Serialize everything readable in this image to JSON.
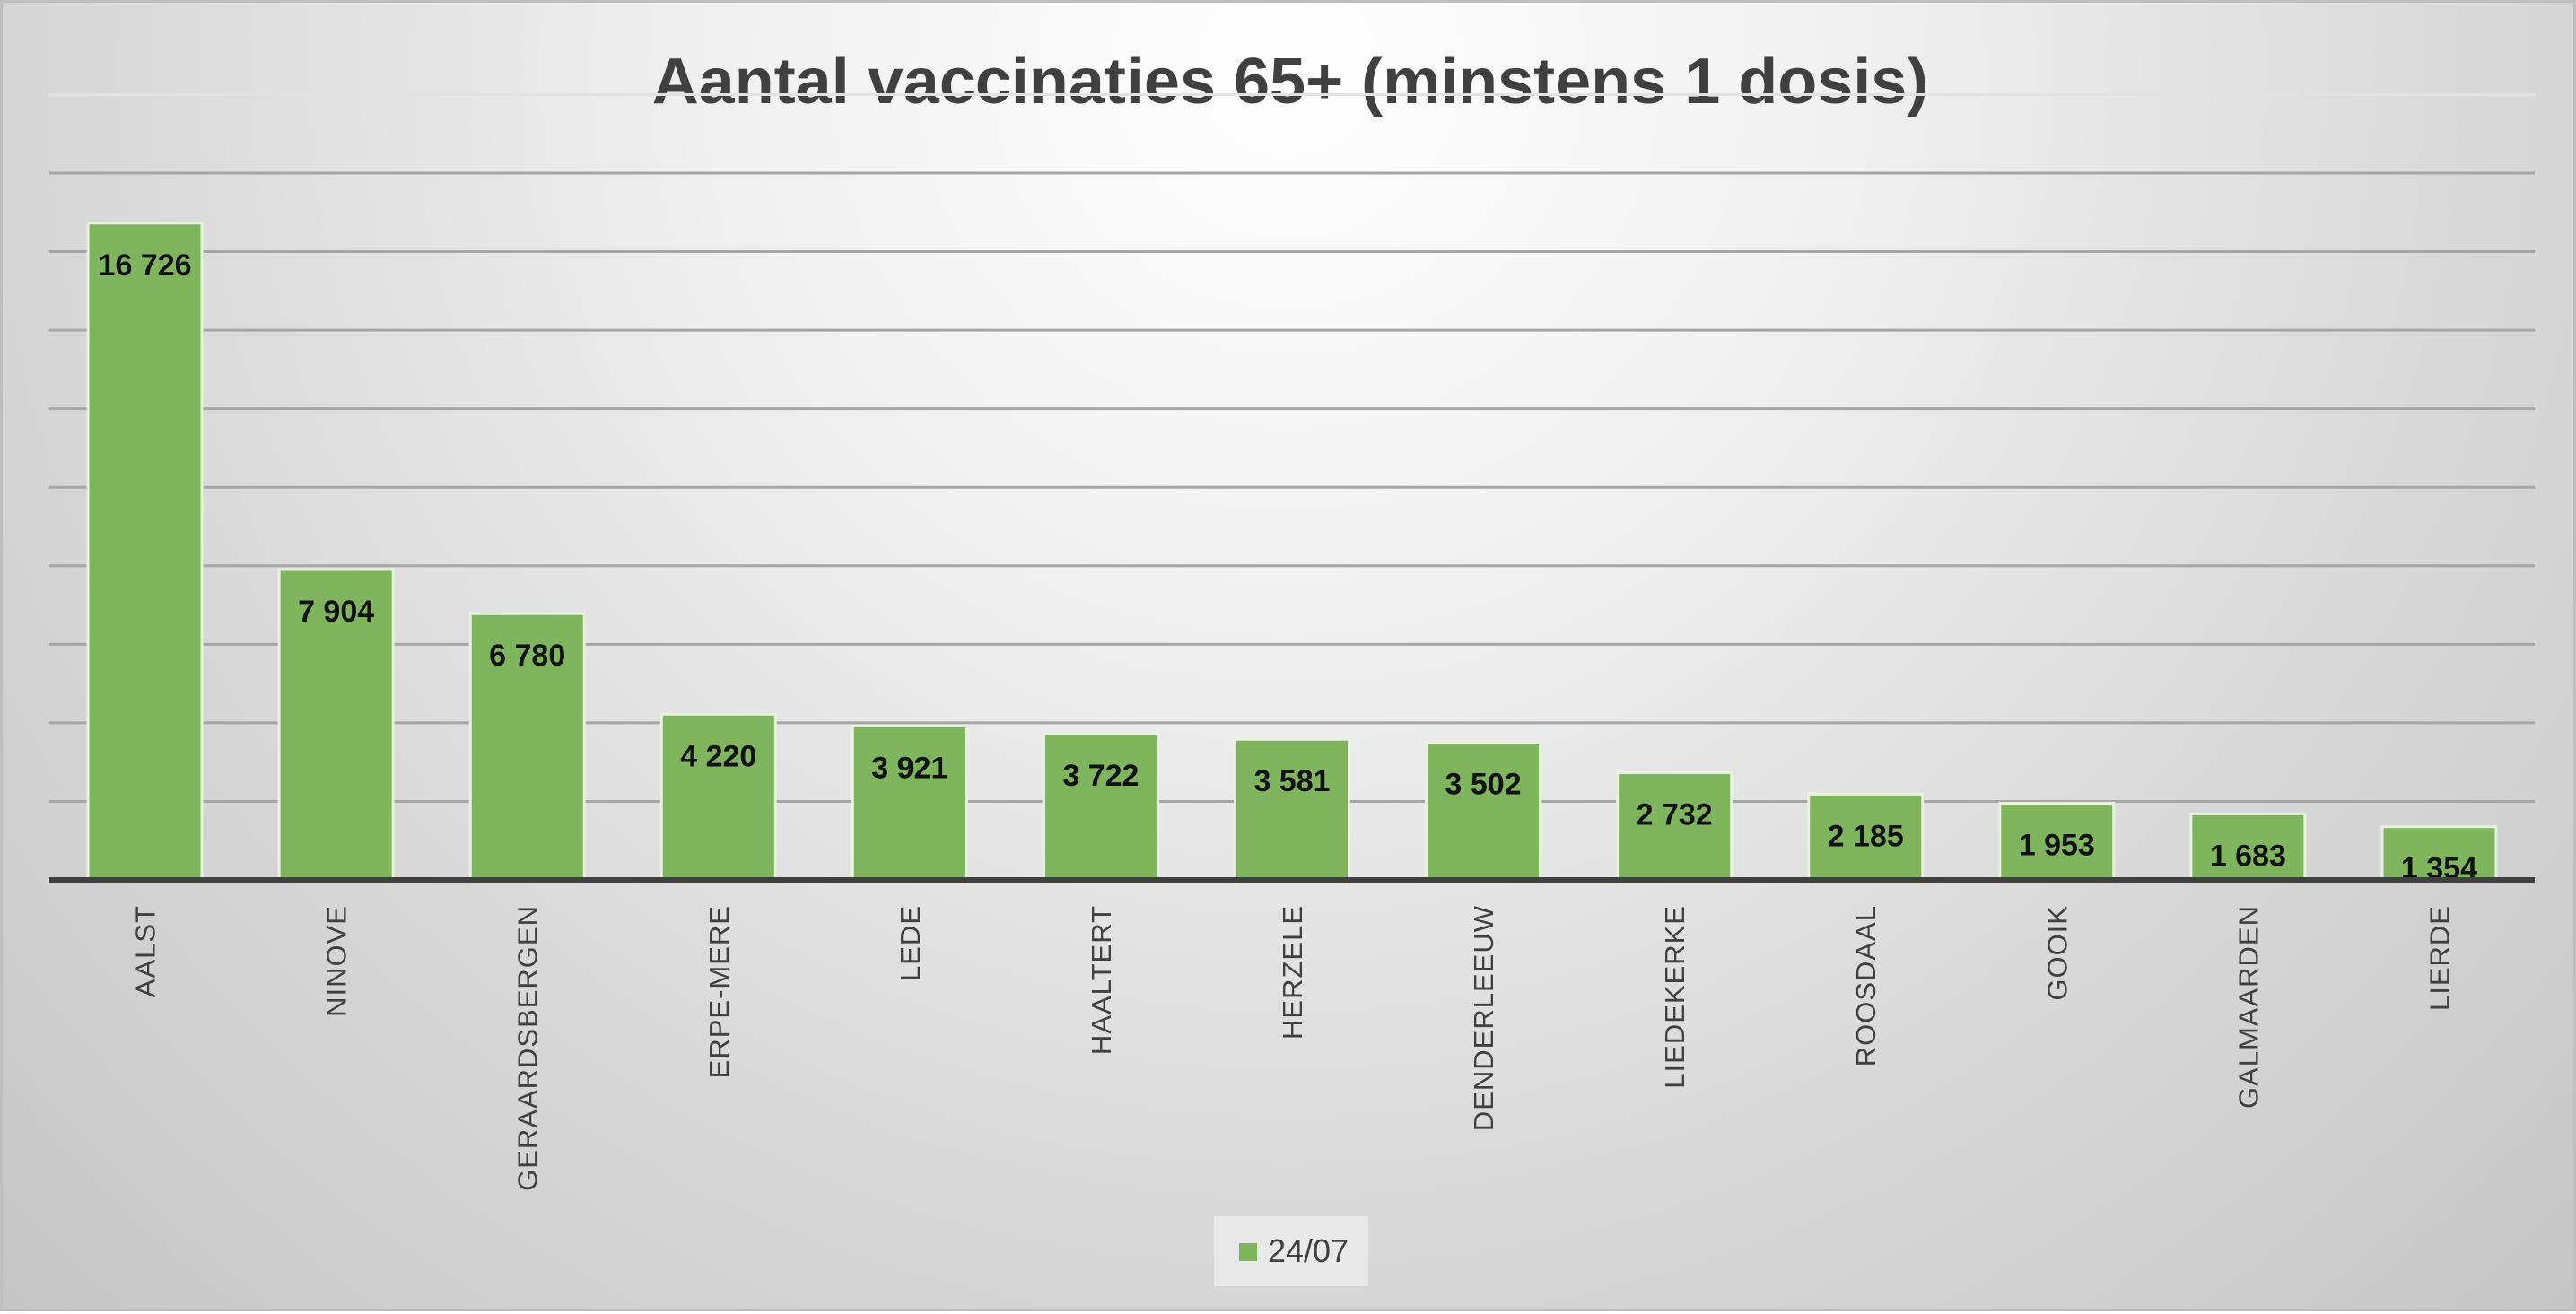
{
  "chart_data": {
    "type": "bar",
    "title": "Aantal vaccinaties 65+ (minstens 1 dosis)",
    "xlabel": "",
    "ylabel": "",
    "ylim": [
      0,
      18000
    ],
    "grid": true,
    "legend_position": "bottom",
    "bar_color": "#7fb55d",
    "categories": [
      "AALST",
      "NINOVE",
      "GERAARDSBERGEN",
      "ERPE-MERE",
      "LEDE",
      "HAALTERT",
      "HERZELE",
      "DENDERLEEUW",
      "LIEDEKERKE",
      "ROOSDAAL",
      "GOOIK",
      "GALMAARDEN",
      "LIERDE"
    ],
    "series": [
      {
        "name": "24/07",
        "values": [
          16726,
          7904,
          6780,
          4220,
          3921,
          3722,
          3581,
          3502,
          2732,
          2185,
          1953,
          1683,
          1354
        ],
        "labels": [
          "16 726",
          "7 904",
          "6 780",
          "4 220",
          "3 921",
          "3 722",
          "3 581",
          "3 502",
          "2 732",
          "2 185",
          "1 953",
          "1 683",
          "1 354"
        ]
      }
    ]
  }
}
